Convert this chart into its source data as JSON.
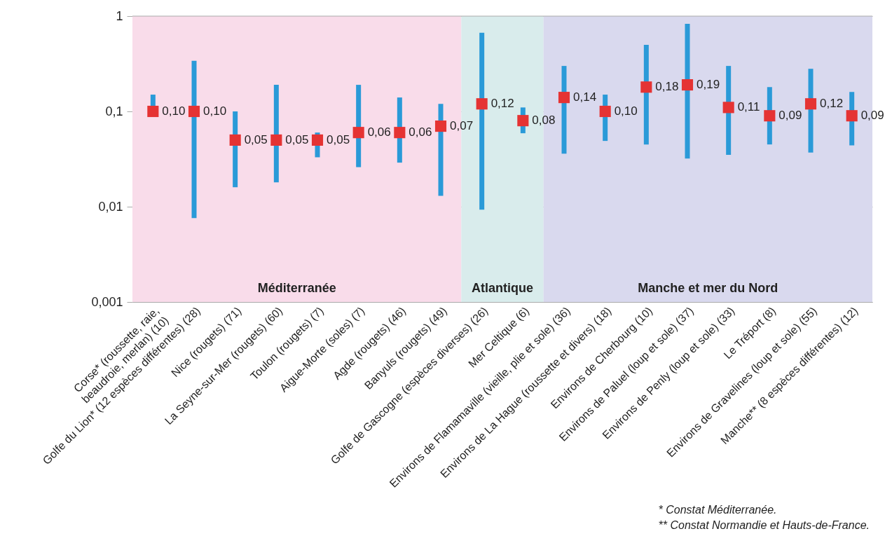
{
  "chart_data": {
    "type": "scatter",
    "categories": [
      "Corse* (roussette, raie, beaudroie, merlan) (10)",
      "Golfe du Lion* (12 espèces différentes) (28)",
      "Nice (rougets) (71)",
      "La Seyne-sur-Mer (rougets) (60)",
      "Toulon (rougets) (7)",
      "Aigue-Morte (soles) (7)",
      "Agde (rougets) (46)",
      "Banyuls (rougets) (49)",
      "Golfe de Gascogne (espèces diverses) (26)",
      "Mer Celtique (6)",
      "Environs de Flamamaville (vieille, plie et sole) (36)",
      "Environs de La Hague (roussette et divers) (18)",
      "Environs de Cherbourg (10)",
      "Environs de Paluel (loup et sole) (37)",
      "Environs de Penly (loup et sole) (33)",
      "Le Tréport (8)",
      "Environs de Gravelines (loup et sole) (55)",
      "Manche** (8 espèces différentes) (12)"
    ],
    "series": [
      {
        "color": "#e53333",
        "values": [
          0.1,
          0.1,
          0.05,
          0.05,
          0.05,
          0.06,
          0.06,
          0.07,
          0.12,
          0.08,
          0.14,
          0.1,
          0.18,
          0.19,
          0.11,
          0.09,
          0.12,
          0.09
        ],
        "value_labels": [
          "0,10",
          "0,10",
          "0,05",
          "0,05",
          "0,05",
          "0,06",
          "0,06",
          "0,07",
          "0,12",
          "0,08",
          "0,14",
          "0,10",
          "0,18",
          "0,19",
          "0,11",
          "0,09",
          "0,12",
          "0,09"
        ],
        "errors": [
          [
            0.09,
            0.15
          ],
          [
            0.0076,
            0.34
          ],
          [
            0.016,
            0.1
          ],
          [
            0.018,
            0.19
          ],
          [
            0.033,
            0.06
          ],
          [
            0.026,
            0.19
          ],
          [
            0.029,
            0.14
          ],
          [
            0.013,
            0.12
          ],
          [
            0.0093,
            0.67
          ],
          [
            0.059,
            0.11
          ],
          [
            0.036,
            0.3
          ],
          [
            0.049,
            0.15
          ],
          [
            0.045,
            0.5
          ],
          [
            0.032,
            0.83
          ],
          [
            0.035,
            0.3
          ],
          [
            0.045,
            0.18
          ],
          [
            0.037,
            0.28
          ],
          [
            0.044,
            0.16
          ]
        ]
      }
    ],
    "marker": "square",
    "log": "y",
    "ylim": [
      0.001,
      1
    ],
    "yticks": [
      {
        "value": 0.001,
        "label": "0,001"
      },
      {
        "value": 0.01,
        "label": "0,01"
      },
      {
        "value": 0.1,
        "label": "0,1"
      },
      1
    ],
    "grid": "y",
    "bands": [
      {
        "axis": "x",
        "from": "Corse* (roussette, raie, beaudroie, merlan) (10)",
        "to": "Banyuls (rougets) (49)",
        "label": "Méditerranée",
        "color": "#f9dcea"
      },
      {
        "axis": "x",
        "from": "Golfe de Gascogne (espèces diverses) (26)",
        "to": "Mer Celtique (6)",
        "label": "Atlantique",
        "color": "#d9ecec"
      },
      {
        "axis": "x",
        "from": "Environs de Flamamaville (vieille, plie et sole) (36)",
        "to": "Manche** (8 espèces différentes) (12)",
        "label": "Manche et mer du Nord",
        "color": "#d9d9ee"
      }
    ],
    "annotations": [
      "* Constat Méditerranée.",
      "** Constat Normandie et Hauts-de-France."
    ]
  }
}
